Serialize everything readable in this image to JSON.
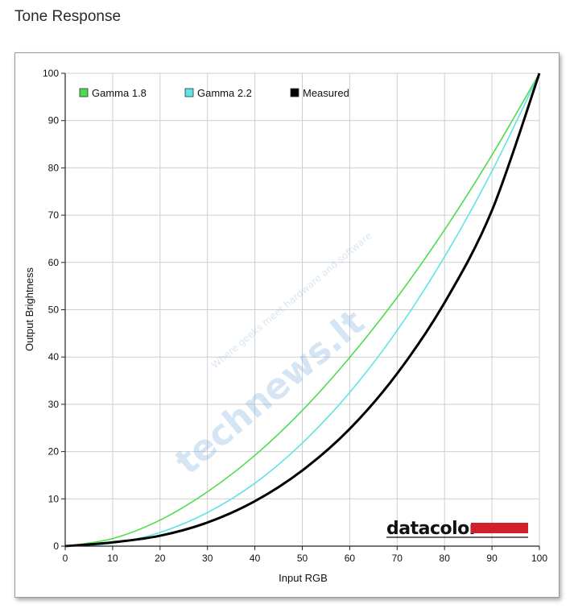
{
  "page": {
    "title": "Tone Response"
  },
  "branding": {
    "logo_text": "datacolor",
    "logo_bar_color": "#d1202b"
  },
  "watermark": {
    "main": "technews.lt",
    "tagline": "Where geeks meet hardware and software"
  },
  "chart_data": {
    "type": "line",
    "title": "",
    "xlabel": "Input RGB",
    "ylabel": "Output Brightness",
    "xlim": [
      0,
      100
    ],
    "ylim": [
      0,
      100
    ],
    "xticks": [
      0,
      10,
      20,
      30,
      40,
      50,
      60,
      70,
      80,
      90,
      100
    ],
    "yticks": [
      0,
      10,
      20,
      30,
      40,
      50,
      60,
      70,
      80,
      90,
      100
    ],
    "grid": true,
    "legend_position": "top-left",
    "x": [
      0,
      10,
      20,
      30,
      40,
      50,
      60,
      70,
      80,
      90,
      100
    ],
    "series": [
      {
        "name": "Gamma 1.8",
        "color": "#4ddc4d",
        "values": [
          0,
          1.6,
          5.5,
          11.5,
          19.2,
          28.7,
          39.9,
          52.6,
          66.9,
          82.7,
          100
        ]
      },
      {
        "name": "Gamma 2.2",
        "color": "#5fe3e3",
        "values": [
          0,
          0.6,
          2.9,
          7.1,
          13.3,
          21.8,
          32.5,
          45.6,
          61.2,
          79.3,
          100
        ]
      },
      {
        "name": "Measured",
        "color": "#000000",
        "values": [
          0,
          0.8,
          2.2,
          5.0,
          9.5,
          16.0,
          24.8,
          36.5,
          51.5,
          71.0,
          100
        ]
      }
    ]
  }
}
